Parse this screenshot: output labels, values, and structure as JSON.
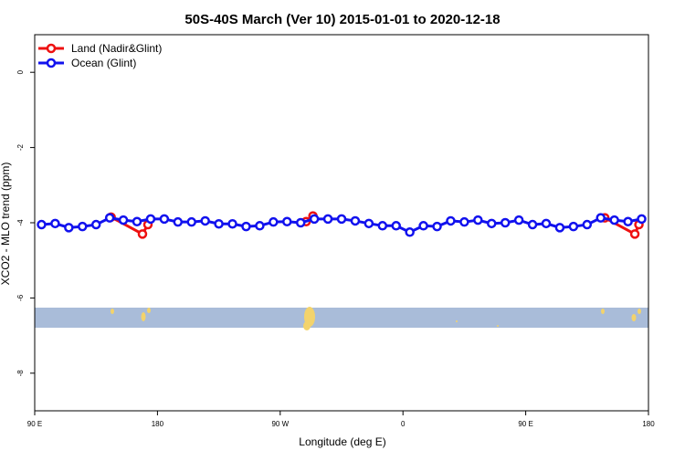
{
  "chart_data": {
    "type": "line",
    "title": "50S-40S March (Ver 10)   2015-01-01 to 2020-12-18",
    "x_label": "Longitude (deg E)",
    "y_label": "XCO2 - MLO trend (ppm)",
    "xlim": [
      90,
      540
    ],
    "xticks": [
      {
        "value": 90,
        "label": "90 E"
      },
      {
        "value": 180,
        "label": "180"
      },
      {
        "value": 270,
        "label": "90 W"
      },
      {
        "value": 360,
        "label": "0"
      },
      {
        "value": 450,
        "label": "90 E"
      },
      {
        "value": 540,
        "label": "180"
      }
    ],
    "ylim": [
      -9,
      1
    ],
    "yticks": [
      0,
      -2,
      -4,
      -6,
      -8
    ],
    "legend": "top-left",
    "series": [
      {
        "name": "Land (Nadir&Glint)",
        "color": "#ee1111",
        "x": [
          146,
          169,
          173,
          null,
          289,
          294,
          null,
          508,
          530,
          533
        ],
        "values": [
          -3.85,
          -4.3,
          -4.05,
          null,
          -3.97,
          -3.82,
          null,
          -3.87,
          -4.3,
          -4.05
        ]
      },
      {
        "name": "Ocean (Glint)",
        "color": "#1111ee",
        "x": [
          95,
          105,
          115,
          125,
          135,
          145,
          155,
          165,
          175,
          185,
          195,
          205,
          215,
          225,
          235,
          245,
          255,
          265,
          275,
          285,
          295,
          305,
          315,
          325,
          335,
          345,
          355,
          365,
          375,
          385,
          395,
          405,
          415,
          425,
          435,
          445,
          455,
          465,
          475,
          485,
          495,
          505,
          515,
          525,
          535
        ],
        "values": [
          -4.05,
          -4.02,
          -4.13,
          -4.1,
          -4.05,
          -3.87,
          -3.93,
          -3.97,
          -3.9,
          -3.9,
          -3.98,
          -3.98,
          -3.95,
          -4.03,
          -4.03,
          -4.1,
          -4.08,
          -3.98,
          -3.97,
          -4.0,
          -3.9,
          -3.9,
          -3.9,
          -3.95,
          -4.02,
          -4.08,
          -4.08,
          -4.25,
          -4.08,
          -4.1,
          -3.95,
          -3.98,
          -3.93,
          -4.02,
          -4.0,
          -3.93,
          -4.05,
          -4.02,
          -4.13,
          -4.1,
          -4.05,
          -3.87,
          -3.93,
          -3.97,
          -3.9
        ]
      }
    ]
  }
}
